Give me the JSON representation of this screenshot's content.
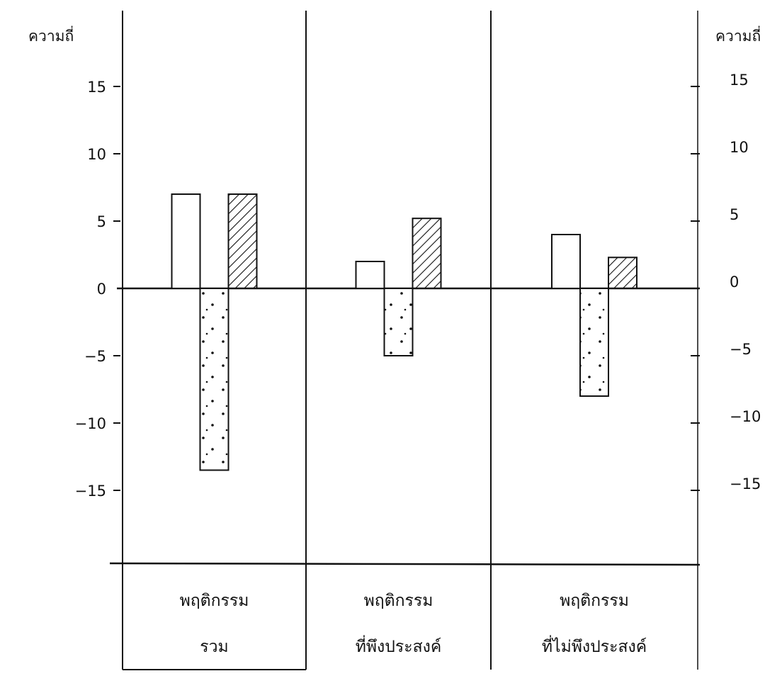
{
  "chart_data": {
    "type": "bar",
    "ylabel_left": "ความถี่",
    "ylabel_right": "ความถี่",
    "ylim": [
      -20,
      20
    ],
    "yticks": [
      -15,
      -10,
      -5,
      0,
      5,
      10,
      15
    ],
    "ytick_labels": [
      "−15",
      "−10",
      "−5",
      "0",
      "5",
      "10",
      "15"
    ],
    "categories": [
      {
        "line1": "พฤติกรรม",
        "line2": "รวม"
      },
      {
        "line1": "พฤติกรรม",
        "line2": "ที่พึงประสงค์"
      },
      {
        "line1": "พฤติกรรม",
        "line2": "ที่ไม่พึงประสงค์"
      }
    ],
    "series": [
      {
        "pattern": "plain",
        "values": [
          7,
          2,
          4
        ]
      },
      {
        "pattern": "dotted",
        "values": [
          -13.5,
          -5,
          -8
        ]
      },
      {
        "pattern": "hatched",
        "values": [
          7,
          5.2,
          2.3
        ]
      }
    ],
    "grid": false,
    "legend": "none",
    "colors": {
      "ink": "#111111",
      "background": "#ffffff"
    }
  }
}
